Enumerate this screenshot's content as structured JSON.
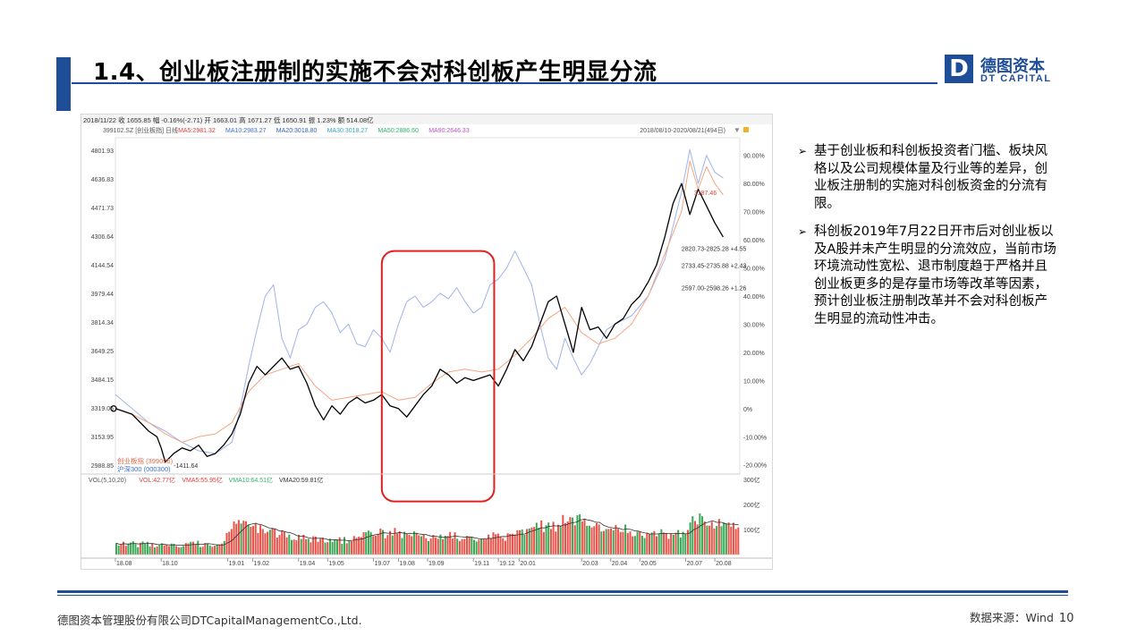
{
  "title": "1.4、创业板注册制的实施不会对科创板产生明显分流",
  "logo": {
    "mark": "D",
    "cn": "德图资本",
    "en": "DT CAPITAL"
  },
  "bullets": [
    "基于创业板和科创板投资者门槛、板块风格以及公司规模体量及行业等的差异，创业板注册制的实施对科创板资金的分流有限。",
    "科创板2019年7月22日开市后对创业板以及A股并未产生明显的分流效应，当前市场环境流动性宽松、退市制度趋于严格并且创业板更多的是存量市场等改革等因素，预计创业板注册制改革并不会对科创板产生明显的流动性冲击。"
  ],
  "footer": {
    "company": "德图资本管理股份有限公司DTCapitalManagementCo.,Ltd.",
    "source": "数据来源：Wind",
    "page": "10"
  },
  "colors": {
    "brand": "#1f4e99",
    "chinext": "#000000",
    "hs300": "#f4a582",
    "ma_blue": "#8fa6e6",
    "highlight": "#e02020",
    "vol_up": "#e8534a",
    "vol_down": "#3aa856"
  },
  "chart_data": {
    "type": "line",
    "info_bar": "2018/11/22  收 1655.85  幅 -0.16%(-2.71)  开 1663.01  高 1671.27  低 1650.91  振 1.23%  额 514.08亿",
    "legend_line": [
      {
        "text": "399102.SZ [创业板指] 日线",
        "color": "#555555"
      },
      {
        "text": "MA5:2981.32",
        "color": "#e0403a"
      },
      {
        "text": "MA10:2983.27",
        "color": "#3a6fd8"
      },
      {
        "text": "MA20:3018.80",
        "color": "#2f5fc0"
      },
      {
        "text": "MA30:3018.27",
        "color": "#36a6c8"
      },
      {
        "text": "MA50:2886.60",
        "color": "#2fb36a"
      },
      {
        "text": "MA90:2646.33",
        "color": "#c050c8"
      }
    ],
    "date_range": "2018/08/10-2020/08/21(494日)",
    "y_left_ticks": [
      "4801.93",
      "4636.83",
      "4471.73",
      "4306.64",
      "4144.54",
      "3979.44",
      "3814.34",
      "3649.25",
      "3484.15",
      "3319.05",
      "3153.95",
      "2988.85"
    ],
    "y_right_ticks": [
      "90.00%",
      "80.00%",
      "70.00%",
      "60.00%",
      "50.00%",
      "40.00%",
      "30.00%",
      "20.00%",
      "10.00%",
      "0%",
      "-10.00%",
      "-20.00%"
    ],
    "x_ticks": [
      "18.08",
      "18.10",
      "19.01",
      "19.02",
      "19.04",
      "19.05",
      "19.07",
      "19.08",
      "19.09",
      "19.11",
      "19.12",
      "20.01",
      "20.03",
      "20.04",
      "20.05",
      "20.07",
      "20.08"
    ],
    "x_tick_positions": [
      0.0,
      0.11,
      0.27,
      0.33,
      0.44,
      0.51,
      0.62,
      0.68,
      0.75,
      0.86,
      0.92,
      0.97,
      1.12,
      1.19,
      1.26,
      1.37,
      1.44
    ],
    "series": [
      {
        "name": "创业板指(399006)",
        "color": "#000000",
        "x": [
          0.0,
          0.02,
          0.04,
          0.06,
          0.08,
          0.1,
          0.11,
          0.12,
          0.14,
          0.16,
          0.18,
          0.2,
          0.22,
          0.24,
          0.26,
          0.28,
          0.3,
          0.32,
          0.34,
          0.36,
          0.38,
          0.4,
          0.42,
          0.44,
          0.46,
          0.48,
          0.5,
          0.52,
          0.54,
          0.56,
          0.58,
          0.6,
          0.62,
          0.64,
          0.66,
          0.68,
          0.7,
          0.72,
          0.74,
          0.76,
          0.78,
          0.8,
          0.82,
          0.84,
          0.86,
          0.88,
          0.9,
          0.92,
          0.94,
          0.96,
          0.98,
          1.0,
          1.02,
          1.04,
          1.06,
          1.08,
          1.1,
          1.12,
          1.14,
          1.16,
          1.18,
          1.2,
          1.22,
          1.24,
          1.26,
          1.28,
          1.3,
          1.32,
          1.34,
          1.36,
          1.38,
          1.4,
          1.42,
          1.44,
          1.46
        ],
        "values": [
          0,
          -1,
          -2,
          -5,
          -8,
          -10,
          -14,
          -19,
          -16,
          -14,
          -15,
          -13,
          -17,
          -16,
          -13,
          -9,
          -2,
          9,
          15,
          12,
          15,
          18,
          14,
          15,
          9,
          1,
          -4,
          1,
          -2,
          2,
          4,
          2,
          3,
          5,
          1,
          0,
          -3,
          1,
          5,
          8,
          14,
          12,
          9,
          11,
          10,
          11,
          12,
          8,
          14,
          21,
          17,
          22,
          30,
          38,
          40,
          30,
          20,
          36,
          28,
          29,
          25,
          30,
          32,
          37,
          40,
          45,
          51,
          61,
          73,
          80,
          69,
          78,
          72,
          66,
          61
        ]
      },
      {
        "name": "沪深300(000300)",
        "color": "#f4a582",
        "x": [
          0.0,
          0.04,
          0.08,
          0.12,
          0.16,
          0.2,
          0.24,
          0.28,
          0.32,
          0.36,
          0.4,
          0.44,
          0.48,
          0.52,
          0.56,
          0.6,
          0.64,
          0.68,
          0.72,
          0.76,
          0.8,
          0.84,
          0.88,
          0.92,
          0.96,
          1.0,
          1.04,
          1.08,
          1.12,
          1.16,
          1.2,
          1.24,
          1.28,
          1.32,
          1.36,
          1.38,
          1.4,
          1.42,
          1.44,
          1.46
        ],
        "values": [
          0,
          -2,
          -5,
          -9,
          -12,
          -10,
          -9,
          -5,
          6,
          12,
          14,
          16,
          8,
          3,
          4,
          5,
          6,
          3,
          4,
          9,
          13,
          14,
          13,
          14,
          19,
          25,
          32,
          36,
          27,
          23,
          25,
          30,
          40,
          55,
          70,
          88,
          78,
          86,
          80,
          76
        ]
      },
      {
        "name": "MA",
        "color": "#8fa6e6",
        "x": [
          0.0,
          0.04,
          0.08,
          0.12,
          0.16,
          0.2,
          0.24,
          0.28,
          0.3,
          0.32,
          0.34,
          0.36,
          0.38,
          0.4,
          0.42,
          0.44,
          0.46,
          0.48,
          0.5,
          0.52,
          0.54,
          0.56,
          0.58,
          0.6,
          0.62,
          0.64,
          0.66,
          0.68,
          0.7,
          0.72,
          0.74,
          0.76,
          0.78,
          0.8,
          0.82,
          0.84,
          0.86,
          0.88,
          0.9,
          0.92,
          0.94,
          0.96,
          0.98,
          1.0,
          1.02,
          1.04,
          1.06,
          1.08,
          1.1,
          1.12,
          1.14,
          1.16,
          1.18,
          1.2,
          1.24,
          1.28,
          1.32,
          1.36,
          1.38,
          1.4,
          1.42,
          1.44,
          1.46
        ],
        "values": [
          5,
          0,
          -5,
          -8,
          -12,
          -15,
          -16,
          -12,
          0,
          15,
          28,
          40,
          44,
          25,
          18,
          28,
          30,
          36,
          38,
          34,
          27,
          30,
          23,
          22,
          28,
          25,
          20,
          30,
          38,
          40,
          36,
          38,
          41,
          39,
          43,
          38,
          34,
          36,
          44,
          46,
          50,
          56,
          50,
          44,
          30,
          18,
          14,
          25,
          18,
          12,
          16,
          22,
          28,
          30,
          33,
          40,
          53,
          77,
          92,
          80,
          90,
          84,
          82
        ]
      }
    ],
    "annotations": [
      {
        "text": "-1411.64",
        "x": 0.14,
        "y": -21
      },
      {
        "text": "3187.46",
        "x": 1.39,
        "y": 76
      },
      {
        "text": "2820.73-2825.28  +4.55",
        "x": 1.36,
        "y": 56
      },
      {
        "text": "2733.45-2735.88  +2.43",
        "x": 1.36,
        "y": 50
      },
      {
        "text": "2597.00-2598.26  +1.26",
        "x": 1.36,
        "y": 42
      }
    ],
    "series_labels": [
      "创业板指 (399006)",
      "沪深300 (000300)"
    ],
    "highlight_range": {
      "x_from": 0.64,
      "x_to": 0.91,
      "y_from": -33,
      "y_to": 56
    },
    "ylim": [
      -22,
      95
    ],
    "xlim": [
      0.0,
      1.5
    ],
    "volume": {
      "legend": [
        {
          "text": "VOL(5,10,20)",
          "color": "#555555"
        },
        {
          "text": "VOL:42.77亿",
          "color": "#e0403a"
        },
        {
          "text": "VMA5:55.95亿",
          "color": "#e0403a"
        },
        {
          "text": "VMA10:64.51亿",
          "color": "#2fb36a"
        },
        {
          "text": "VMA20:59.81亿",
          "color": "#333333"
        }
      ],
      "y_ticks": [
        "300亿",
        "200亿",
        "100亿"
      ],
      "ylim": [
        0,
        300
      ],
      "bars": [
        46,
        36,
        42,
        51,
        35,
        42,
        48,
        53,
        42,
        29,
        47,
        52,
        43,
        51,
        32,
        45,
        28,
        32,
        39,
        45,
        37,
        41,
        34,
        44,
        43,
        34,
        29,
        29,
        34,
        46,
        45,
        51,
        51,
        40,
        55,
        30,
        31,
        46,
        42,
        36,
        31,
        35,
        40,
        40,
        44,
        54,
        86,
        91,
        102,
        132,
        123,
        138,
        124,
        135,
        133,
        120,
        111,
        114,
        124,
        86,
        117,
        102,
        85,
        91,
        99,
        107,
        103,
        68,
        78,
        96,
        91,
        69,
        80,
        58,
        60,
        57,
        79,
        62,
        79,
        61,
        63,
        49,
        73,
        72,
        51,
        63,
        68,
        48,
        49,
        63,
        51,
        59,
        57,
        69,
        43,
        70,
        45,
        56,
        54,
        74,
        67,
        71,
        70,
        89,
        89,
        96,
        90,
        74,
        75,
        83,
        104,
        98,
        65,
        78,
        94,
        76,
        106,
        84,
        93,
        66,
        91,
        82,
        79,
        73,
        93,
        84,
        77,
        73,
        79,
        65,
        54,
        64,
        78,
        69,
        63,
        80,
        61,
        75,
        74,
        90,
        64,
        89,
        63,
        54,
        62,
        62,
        74,
        71,
        70,
        59,
        52,
        59,
        62,
        61,
        61,
        80,
        66,
        89,
        81,
        84,
        72,
        65,
        55,
        85,
        82,
        83,
        80,
        97,
        97,
        100,
        79,
        102,
        104,
        108,
        110,
        127,
        107,
        136,
        90,
        117,
        128,
        102,
        131,
        92,
        119,
        113,
        158,
        126,
        132,
        150,
        148,
        117,
        157,
        161,
        132,
        142,
        115,
        115,
        108,
        113,
        126,
        120,
        92,
        94,
        102,
        102,
        104,
        97,
        118,
        103,
        90,
        91,
        120,
        86,
        92,
        73,
        74,
        91,
        93,
        75,
        66,
        87,
        82,
        88,
        94,
        73,
        82,
        101,
        88,
        84,
        63,
        84,
        79,
        87,
        98,
        68,
        91,
        84,
        98,
        128,
        153,
        134,
        120,
        164,
        153,
        132,
        116,
        115,
        131,
        104,
        114,
        142,
        113,
        128,
        124,
        128,
        111,
        127,
        102,
        108
      ],
      "colors": [
        "down",
        "down",
        "up",
        "up",
        "up",
        "down",
        "down",
        "down",
        "down",
        "down",
        "up",
        "down",
        "down",
        "down",
        "down",
        "up",
        "down",
        "up",
        "down",
        "down",
        "up",
        "up",
        "up",
        "down",
        "down",
        "up",
        "up",
        "down",
        "down",
        "up",
        "up",
        "down",
        "up",
        "up",
        "down",
        "down",
        "up",
        "up",
        "down",
        "down",
        "up",
        "up",
        "down",
        "up",
        "up",
        "down",
        "up",
        "up",
        "up",
        "up",
        "up",
        "up",
        "down",
        "up",
        "up",
        "down",
        "up",
        "up",
        "up",
        "up",
        "up",
        "up",
        "up",
        "up",
        "down",
        "up",
        "up",
        "up",
        "up",
        "up",
        "up",
        "up",
        "down",
        "down",
        "up",
        "up",
        "up",
        "down",
        "up",
        "up",
        "down",
        "up",
        "up",
        "up",
        "up",
        "up",
        "up",
        "down",
        "up",
        "down",
        "down",
        "down",
        "down",
        "up",
        "down",
        "down",
        "up",
        "down",
        "up",
        "up",
        "up",
        "up",
        "up",
        "up",
        "down",
        "down",
        "down",
        "up",
        "up",
        "up",
        "up",
        "down",
        "up",
        "up",
        "up",
        "down",
        "up",
        "up",
        "up",
        "down",
        "down",
        "up",
        "up",
        "up",
        "down",
        "up",
        "up",
        "down",
        "up",
        "up",
        "down",
        "up",
        "up",
        "up",
        "up",
        "down",
        "up",
        "down",
        "up",
        "up",
        "up",
        "up",
        "down",
        "up",
        "up",
        "up",
        "up",
        "up",
        "down",
        "down",
        "down",
        "up",
        "down",
        "up",
        "up",
        "up",
        "up",
        "up",
        "up",
        "up",
        "up",
        "up",
        "up",
        "up",
        "up",
        "up",
        "up",
        "up",
        "up",
        "down",
        "down",
        "up",
        "down",
        "up",
        "up",
        "down",
        "down",
        "up",
        "up",
        "down",
        "down",
        "up",
        "up",
        "up",
        "up",
        "down",
        "up",
        "up",
        "up",
        "up",
        "down",
        "up",
        "down",
        "down",
        "up",
        "up",
        "down",
        "down",
        "up",
        "up",
        "up",
        "up",
        "down",
        "up",
        "down",
        "up",
        "up",
        "down",
        "up",
        "up",
        "up",
        "up",
        "down",
        "up",
        "up",
        "up",
        "down",
        "down",
        "up",
        "down",
        "down",
        "up",
        "up",
        "down",
        "up",
        "up",
        "down",
        "down",
        "up",
        "up",
        "up",
        "up",
        "down",
        "up",
        "down",
        "down",
        "down",
        "down",
        "up",
        "down",
        "down",
        "up",
        "up",
        "down",
        "down",
        "up",
        "down",
        "up",
        "up",
        "up",
        "down",
        "up",
        "down",
        "down",
        "down",
        "up",
        "up",
        "up",
        "up",
        "up",
        "up",
        "up"
      ]
    }
  }
}
